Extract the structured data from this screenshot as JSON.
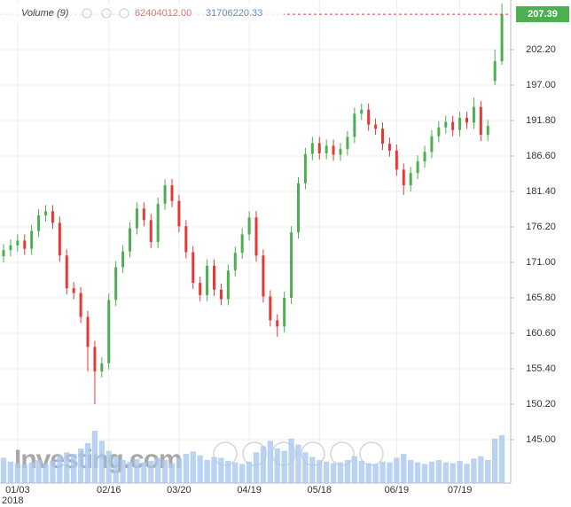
{
  "chart_data": {
    "type": "candlestick",
    "volume_legend": "Volume (9)",
    "volume_label": "62404012.00",
    "volume_ma": 31706220.33,
    "watermark": "Investing.com",
    "x_year": "2018",
    "categories": [
      null,
      null,
      "01/03",
      null,
      null,
      null,
      null,
      null,
      null,
      null,
      null,
      null,
      null,
      null,
      null,
      "02/16",
      null,
      null,
      null,
      null,
      null,
      null,
      null,
      null,
      null,
      "03/20",
      null,
      null,
      null,
      null,
      null,
      null,
      null,
      null,
      null,
      "04/19",
      null,
      null,
      null,
      null,
      null,
      null,
      null,
      null,
      null,
      "05/18",
      null,
      null,
      null,
      null,
      null,
      null,
      null,
      null,
      null,
      null,
      "06/19",
      null,
      null,
      null,
      null,
      null,
      null,
      null,
      null,
      "07/19",
      null,
      null,
      null,
      null,
      null,
      null
    ],
    "open": [
      171.9,
      172.8,
      173.5,
      174.2,
      173.0,
      175.6,
      177.9,
      178.5,
      176.8,
      172.0,
      167.2,
      166.5,
      163.0,
      158.6,
      155.0,
      156.2,
      165.5,
      170.3,
      172.6,
      176.0,
      178.9,
      177.2,
      174.0,
      179.6,
      182.3,
      180.0,
      176.3,
      172.5,
      168.0,
      166.2,
      170.5,
      167.0,
      165.6,
      169.8,
      172.4,
      175.1,
      177.6,
      172.0,
      166.0,
      162.5,
      161.6,
      165.8,
      175.4,
      182.6,
      186.9,
      188.5,
      187.0,
      188.1,
      186.8,
      187.6,
      189.4,
      192.8,
      193.4,
      191.2,
      190.6,
      188.4,
      187.4,
      184.6,
      182.3,
      184.1,
      185.8,
      187.2,
      189.5,
      190.8,
      191.6,
      190.4,
      192.2,
      191.5,
      193.8,
      189.7,
      197.6,
      200.5
    ],
    "high": [
      173.7,
      174.4,
      175.1,
      175.1,
      176.5,
      178.8,
      179.4,
      179.4,
      177.7,
      172.9,
      168.1,
      167.4,
      163.9,
      159.5,
      157.1,
      166.4,
      171.2,
      173.5,
      176.9,
      179.8,
      179.8,
      178.1,
      180.5,
      183.2,
      183.2,
      180.9,
      177.2,
      173.4,
      168.9,
      171.4,
      171.4,
      167.9,
      170.7,
      173.3,
      176.0,
      178.5,
      178.5,
      172.9,
      166.9,
      163.4,
      166.7,
      176.3,
      183.5,
      187.8,
      189.4,
      189.4,
      189.0,
      189.0,
      188.5,
      190.3,
      193.7,
      194.3,
      194.3,
      192.1,
      191.5,
      189.3,
      188.3,
      185.5,
      185.0,
      186.7,
      188.1,
      190.4,
      191.7,
      192.5,
      192.5,
      193.1,
      193.1,
      195.2,
      194.7,
      191.9,
      202.2,
      209.0
    ],
    "low": [
      171.0,
      171.9,
      172.6,
      172.1,
      172.1,
      174.7,
      177.0,
      175.9,
      171.1,
      166.3,
      165.6,
      162.1,
      155.0,
      150.2,
      154.1,
      155.3,
      164.6,
      169.4,
      171.7,
      175.1,
      176.3,
      173.1,
      173.1,
      178.7,
      179.1,
      175.4,
      171.6,
      167.1,
      165.3,
      165.3,
      166.1,
      164.7,
      164.7,
      168.9,
      171.5,
      174.2,
      171.1,
      165.1,
      161.6,
      160.1,
      160.7,
      164.9,
      174.5,
      181.7,
      186.0,
      186.1,
      186.1,
      185.9,
      185.9,
      186.7,
      188.5,
      191.9,
      190.3,
      189.7,
      187.5,
      186.5,
      183.7,
      180.9,
      181.4,
      183.2,
      184.9,
      186.3,
      188.6,
      189.9,
      189.5,
      189.5,
      190.6,
      190.6,
      188.8,
      188.8,
      197.0,
      200.0
    ],
    "close": [
      172.8,
      173.5,
      174.2,
      173.0,
      175.6,
      177.9,
      178.5,
      176.8,
      172.0,
      167.2,
      166.5,
      163.0,
      158.6,
      155.0,
      156.2,
      165.5,
      170.3,
      172.6,
      176.0,
      178.9,
      177.2,
      174.0,
      179.6,
      182.3,
      180.0,
      176.3,
      172.5,
      168.0,
      166.2,
      170.5,
      167.0,
      165.6,
      169.8,
      172.4,
      175.1,
      177.6,
      172.0,
      166.0,
      162.5,
      161.6,
      165.8,
      175.4,
      182.6,
      186.9,
      188.5,
      187.0,
      188.1,
      186.8,
      187.6,
      189.4,
      192.8,
      193.4,
      191.2,
      190.6,
      188.4,
      187.4,
      184.6,
      182.3,
      184.1,
      185.8,
      187.2,
      189.5,
      190.8,
      191.6,
      190.4,
      192.2,
      191.5,
      193.8,
      189.7,
      191.0,
      200.5,
      207.39
    ],
    "volume": [
      33000000,
      28000000,
      26000000,
      24000000,
      27000000,
      30000000,
      25000000,
      29000000,
      36000000,
      40000000,
      38000000,
      45000000,
      52000000,
      68000000,
      55000000,
      42000000,
      35000000,
      30000000,
      28000000,
      31000000,
      27000000,
      29000000,
      33000000,
      30000000,
      26000000,
      32000000,
      38000000,
      41000000,
      36000000,
      30000000,
      34000000,
      33000000,
      29000000,
      27000000,
      25000000,
      28000000,
      40000000,
      48000000,
      55000000,
      45000000,
      42000000,
      58000000,
      50000000,
      40000000,
      34000000,
      30000000,
      28000000,
      26000000,
      27000000,
      30000000,
      35000000,
      29000000,
      26000000,
      25000000,
      28000000,
      27000000,
      33000000,
      38000000,
      30000000,
      27000000,
      25000000,
      28000000,
      30000000,
      27000000,
      26000000,
      29000000,
      25000000,
      32000000,
      35000000,
      30000000,
      58000000,
      62404012
    ],
    "ylim": [
      138.63,
      209.48
    ],
    "yticks": [
      {
        "value": 145,
        "label": "145.00"
      },
      {
        "value": 150.2,
        "label": "150.20"
      },
      {
        "value": 155.4,
        "label": "155.40"
      },
      {
        "value": 160.6,
        "label": "160.60"
      },
      {
        "value": 165.8,
        "label": "165.80"
      },
      {
        "value": 171,
        "label": "171.00"
      },
      {
        "value": 176.2,
        "label": "176.20"
      },
      {
        "value": 181.4,
        "label": "181.40"
      },
      {
        "value": 186.6,
        "label": "186.60"
      },
      {
        "value": 191.8,
        "label": "191.80"
      },
      {
        "value": 197,
        "label": "197.00"
      },
      {
        "value": 202.2,
        "label": "202.20"
      }
    ],
    "y2lim": [
      0,
      75000000
    ],
    "grid": true,
    "up_color": "#4caf50",
    "down_color": "#e53935",
    "volume_color": "#a9c8ef"
  }
}
